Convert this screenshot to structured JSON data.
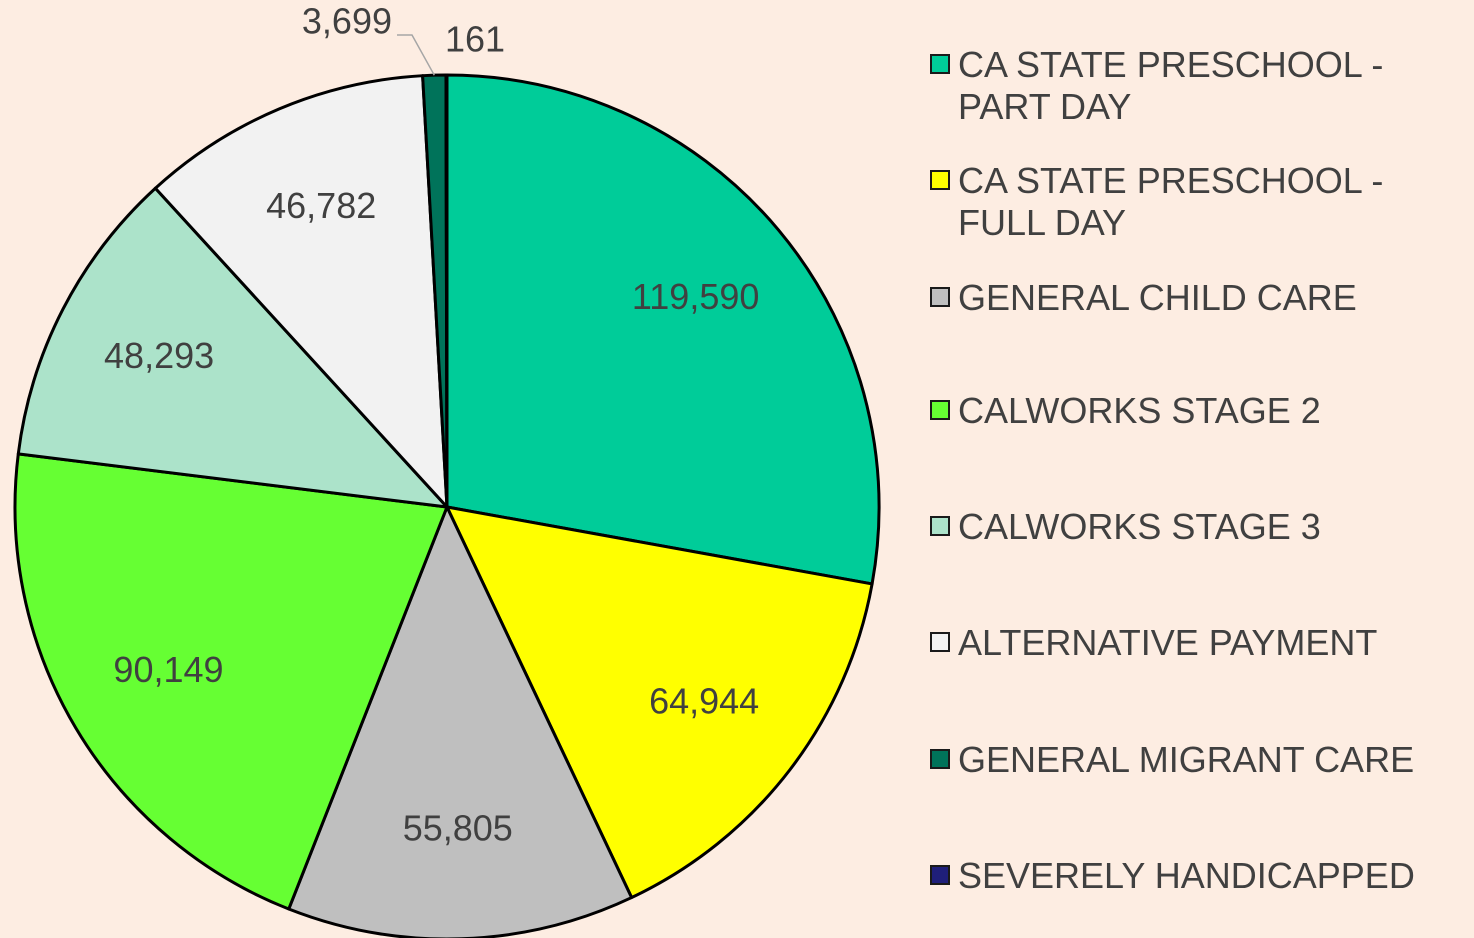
{
  "chart_data": {
    "type": "pie",
    "categories": [
      "CA STATE PRESCHOOL - PART DAY",
      "CA STATE PRESCHOOL - FULL DAY",
      "GENERAL CHILD CARE",
      "CALWORKS STAGE 2",
      "CALWORKS STAGE 3",
      "ALTERNATIVE PAYMENT",
      "GENERAL MIGRANT CARE",
      "SEVERELY HANDICAPPED"
    ],
    "values": [
      119590,
      64944,
      55805,
      90149,
      48293,
      46782,
      3699,
      161
    ],
    "value_labels": [
      "119,590",
      "64,944",
      "55,805",
      "90,149",
      "48,293",
      "46,782",
      "3,699",
      "161"
    ],
    "colors": [
      "#00cc99",
      "#ffff00",
      "#bfbfbf",
      "#66ff33",
      "#ace3ca",
      "#f2f2f2",
      "#00735a",
      "#1f1f7a"
    ],
    "legend": "right"
  }
}
